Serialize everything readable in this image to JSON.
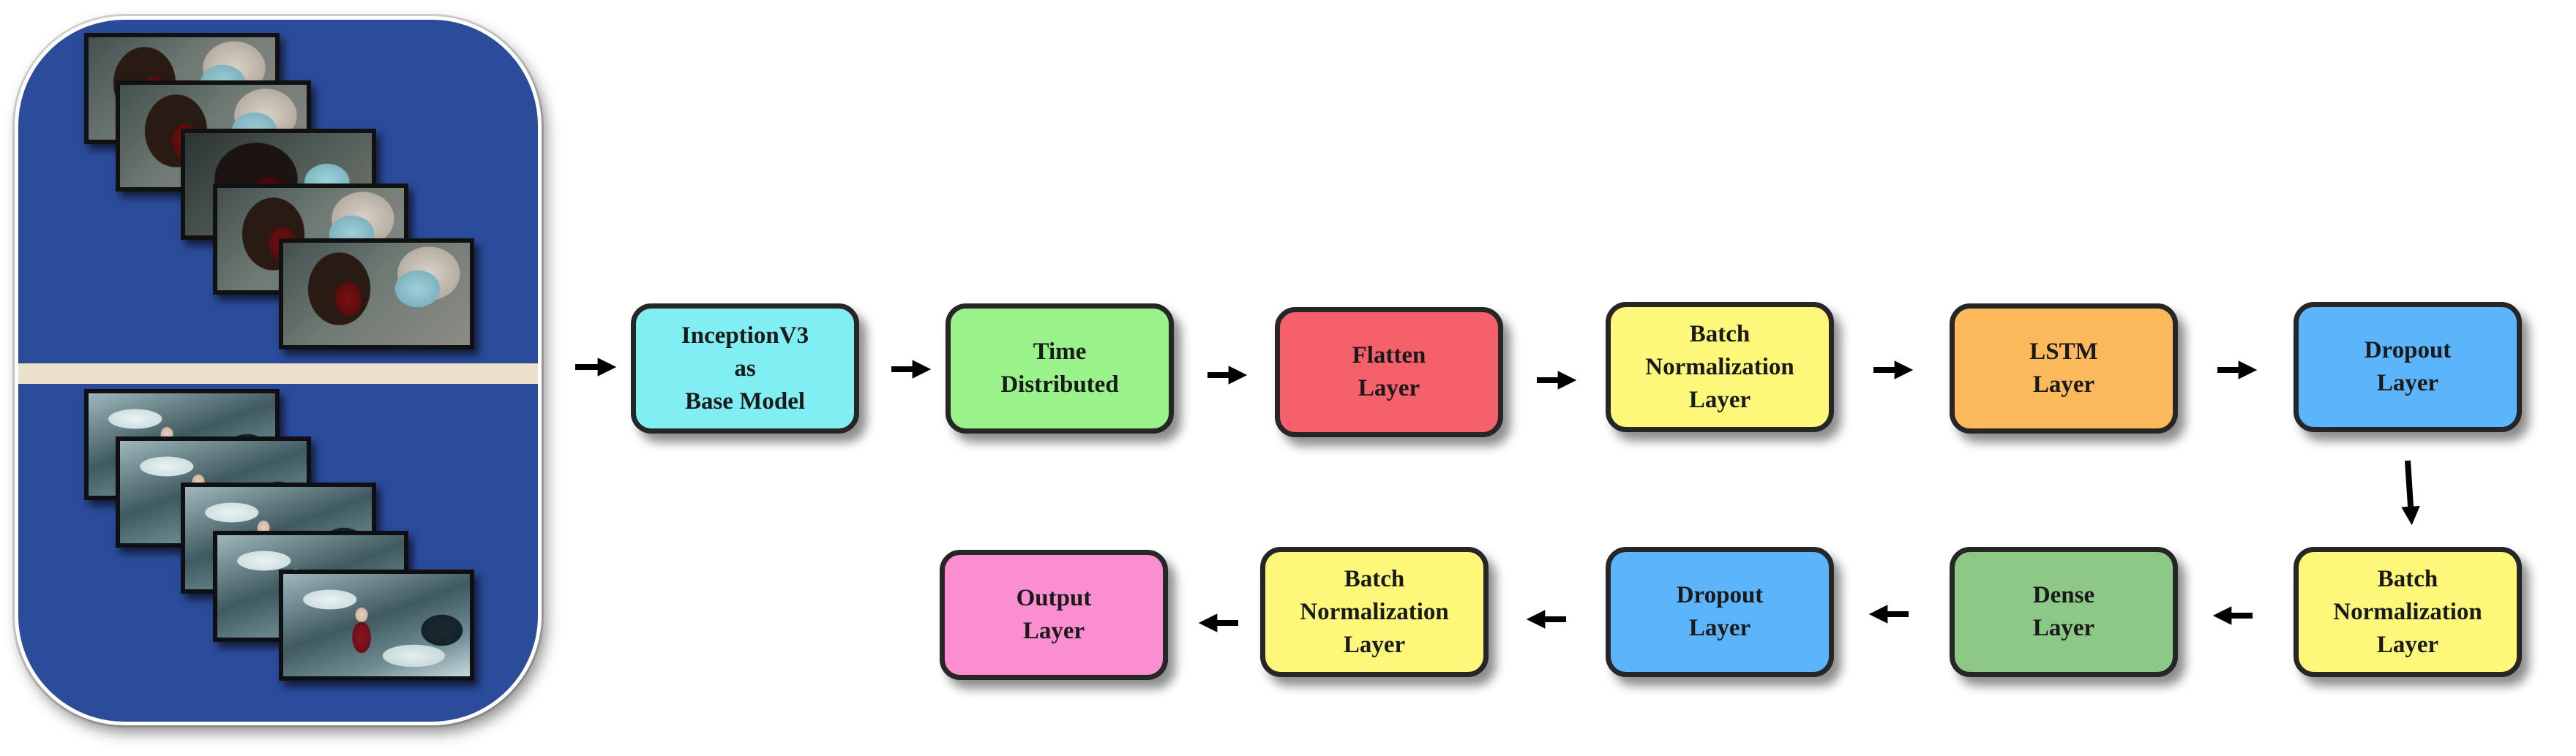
{
  "colors": {
    "panel_bg": "#2b4b9b",
    "cyan": "#80eef2",
    "green": "#9af38a",
    "red": "#f6606a",
    "yellow": "#fdf77a",
    "orange": "#fbb95c",
    "blue": "#5cb5fb",
    "dark_green": "#8ec887",
    "pink": "#fb8ed0",
    "border": "#262626",
    "arrow": "#000000"
  },
  "input_panel": {
    "top_clip": {
      "frames": 5,
      "content": "video frames of a violent scene"
    },
    "bottom_clip": {
      "frames": 5,
      "content": "video frames of a non-violent winter scene"
    }
  },
  "pipeline": {
    "row1": [
      {
        "id": "inceptionv3",
        "label": "InceptionV3\nas\nBase Model",
        "color": "cyan"
      },
      {
        "id": "time-distributed",
        "label": "Time\nDistributed",
        "color": "green"
      },
      {
        "id": "flatten",
        "label": "Flatten\nLayer",
        "color": "red"
      },
      {
        "id": "batchnorm-1",
        "label": "Batch\nNormalization\nLayer",
        "color": "yellow"
      },
      {
        "id": "lstm",
        "label": "LSTM\nLayer",
        "color": "orange"
      },
      {
        "id": "dropout-1",
        "label": "Dropout\nLayer",
        "color": "blue"
      }
    ],
    "row2": [
      {
        "id": "output",
        "label": "Output\nLayer",
        "color": "pink"
      },
      {
        "id": "batchnorm-3",
        "label": "Batch\nNormalization\nLayer",
        "color": "yellow"
      },
      {
        "id": "dropout-2",
        "label": "Dropout\nLayer",
        "color": "blue"
      },
      {
        "id": "dense",
        "label": "Dense\nLayer",
        "color": "dark_green"
      },
      {
        "id": "batchnorm-2",
        "label": "Batch\nNormalization\nLayer",
        "color": "yellow"
      }
    ]
  }
}
